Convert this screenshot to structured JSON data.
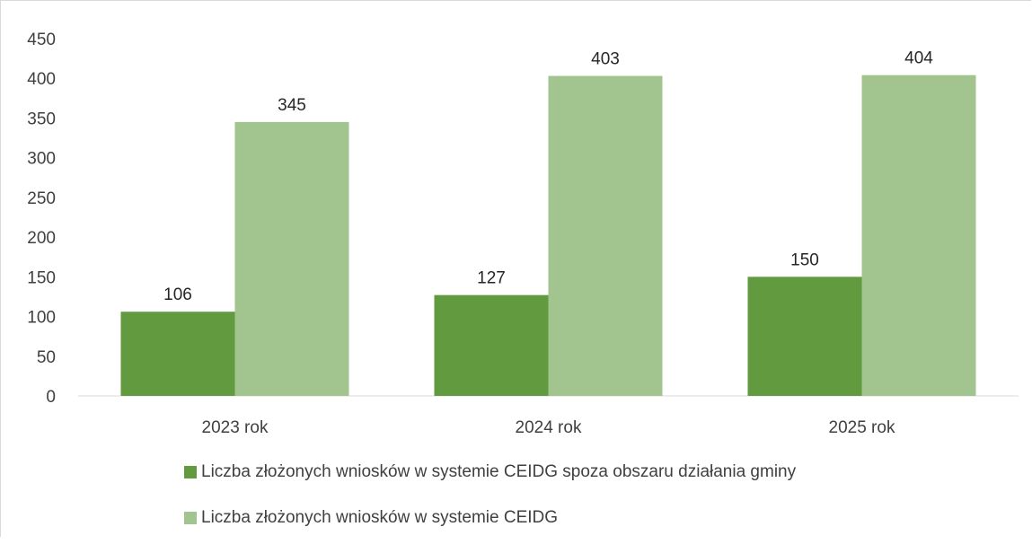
{
  "chart_data": {
    "type": "bar",
    "categories": [
      "2023 rok",
      "2024 rok",
      "2025 rok"
    ],
    "series": [
      {
        "name": "Liczba złożonych wniosków w systemie CEIDG spoza obszaru działania gminy",
        "values": [
          106,
          127,
          150
        ],
        "color": "#629a3f"
      },
      {
        "name": "Liczba złożonych wniosków w systemie CEIDG",
        "values": [
          345,
          403,
          404
        ],
        "color": "#a2c48e"
      }
    ],
    "yticks": [
      "0",
      "50",
      "100",
      "150",
      "200",
      "250",
      "300",
      "350",
      "400",
      "450"
    ],
    "ylim": [
      0,
      450
    ],
    "grid": false,
    "legend": "bottom",
    "axis_color": "#d9d9d9"
  }
}
